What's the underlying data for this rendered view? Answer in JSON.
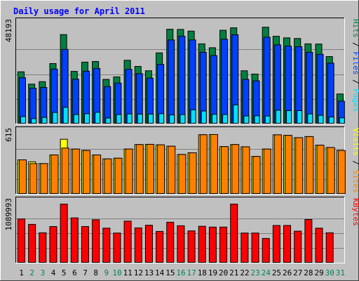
{
  "title": "Daily usage for April 2011",
  "colors": {
    "background": "#c0c0c0",
    "panel": "#c0c0c0",
    "title_text": "#0000ff",
    "hits": "#008040",
    "files": "#0040ff",
    "pages": "#00e0ff",
    "visits": "#ffff00",
    "sites": "#ff8000",
    "kbytes": "#ff0000",
    "weekday_label": "#000000",
    "weekend_label": "#00805c"
  },
  "chart_data": [
    {
      "type": "bar",
      "name": "hits-files-pages",
      "ylabel_parts": [
        "Pages",
        "Files",
        "Hits"
      ],
      "ylabel_colors": [
        "pages",
        "files",
        "hits"
      ],
      "max_label": "48193",
      "ylim": [
        0,
        48193
      ],
      "categories": [
        "1",
        "2",
        "3",
        "4",
        "5",
        "6",
        "7",
        "8",
        "9",
        "10",
        "11",
        "12",
        "13",
        "14",
        "15",
        "16",
        "17",
        "18",
        "19",
        "20",
        "21",
        "22",
        "23",
        "24",
        "25",
        "26",
        "27",
        "28",
        "29",
        "30",
        "31"
      ],
      "series": [
        {
          "name": "Hits",
          "color_key": "hits",
          "values": [
            25400,
            19400,
            20600,
            29400,
            43500,
            25600,
            30100,
            30400,
            21700,
            22900,
            31000,
            28000,
            25900,
            34600,
            46100,
            46000,
            45200,
            39000,
            37100,
            45600,
            46800,
            25900,
            24300,
            47100,
            42700,
            41900,
            41600,
            39000,
            38900,
            32800,
            14600
          ]
        },
        {
          "name": "Files",
          "color_key": "files",
          "values": [
            22500,
            17400,
            17800,
            26700,
            36300,
            21800,
            25700,
            27000,
            18200,
            19900,
            26600,
            24500,
            22300,
            29000,
            40900,
            42700,
            40900,
            34900,
            33300,
            41200,
            43400,
            21700,
            21000,
            42200,
            38500,
            37900,
            37600,
            34900,
            33900,
            29600,
            11100
          ]
        },
        {
          "name": "Pages",
          "color_key": "pages",
          "values": [
            3600,
            2600,
            3200,
            5600,
            8100,
            4600,
            5000,
            5700,
            2900,
            4600,
            4900,
            4800,
            4800,
            5000,
            4400,
            4600,
            6900,
            6300,
            4700,
            4600,
            9300,
            3900,
            4000,
            3900,
            6700,
            6500,
            6500,
            4900,
            4200,
            3400,
            3000
          ]
        }
      ]
    },
    {
      "type": "bar",
      "name": "visits-sites",
      "ylabel_parts": [
        "Sites",
        "Visits"
      ],
      "ylabel_colors": [
        "sites",
        "visits"
      ],
      "max_label": "615",
      "ylim": [
        0,
        615
      ],
      "categories": [
        "1",
        "2",
        "3",
        "4",
        "5",
        "6",
        "7",
        "8",
        "9",
        "10",
        "11",
        "12",
        "13",
        "14",
        "15",
        "16",
        "17",
        "18",
        "19",
        "20",
        "21",
        "22",
        "23",
        "24",
        "25",
        "26",
        "27",
        "28",
        "29",
        "30",
        "31"
      ],
      "series": [
        {
          "name": "Visits",
          "color_key": "visits",
          "values": [
            350,
            330,
            312,
            400,
            560,
            460,
            445,
            400,
            360,
            367,
            460,
            506,
            508,
            503,
            489,
            405,
            422,
            606,
            608,
            485,
            506,
            483,
            385,
            460,
            605,
            599,
            576,
            587,
            499,
            476,
            445
          ]
        },
        {
          "name": "Sites",
          "color_key": "sites",
          "values": [
            350,
            312,
            312,
            400,
            470,
            460,
            445,
            400,
            360,
            367,
            460,
            506,
            508,
            503,
            489,
            405,
            422,
            606,
            608,
            485,
            506,
            483,
            385,
            460,
            605,
            599,
            576,
            587,
            499,
            476,
            445
          ]
        }
      ]
    },
    {
      "type": "bar",
      "name": "kbytes",
      "ylabel_parts": [
        "KBytes"
      ],
      "ylabel_colors": [
        "kbytes"
      ],
      "max_label": "1089993",
      "ylim": [
        0,
        1089993
      ],
      "categories": [
        "1",
        "2",
        "3",
        "4",
        "5",
        "6",
        "7",
        "8",
        "9",
        "10",
        "11",
        "12",
        "13",
        "14",
        "15",
        "16",
        "17",
        "18",
        "19",
        "20",
        "21",
        "22",
        "23",
        "24",
        "25",
        "26",
        "27",
        "28",
        "29",
        "30",
        "31"
      ],
      "series": [
        {
          "name": "KBytes",
          "color_key": "kbytes",
          "values": [
            815000,
            715000,
            560000,
            675000,
            1089993,
            835000,
            675000,
            800000,
            645000,
            555000,
            775000,
            650000,
            700000,
            585000,
            755000,
            690000,
            595000,
            680000,
            665000,
            665000,
            1089993,
            555000,
            555000,
            455000,
            695000,
            695000,
            590000,
            805000,
            645000,
            560000,
            0
          ]
        }
      ]
    }
  ],
  "days": [
    {
      "label": "1",
      "weekend": false
    },
    {
      "label": "2",
      "weekend": true
    },
    {
      "label": "3",
      "weekend": true
    },
    {
      "label": "4",
      "weekend": false
    },
    {
      "label": "5",
      "weekend": false
    },
    {
      "label": "6",
      "weekend": false
    },
    {
      "label": "7",
      "weekend": false
    },
    {
      "label": "8",
      "weekend": false
    },
    {
      "label": "9",
      "weekend": true
    },
    {
      "label": "10",
      "weekend": true
    },
    {
      "label": "11",
      "weekend": false
    },
    {
      "label": "12",
      "weekend": false
    },
    {
      "label": "13",
      "weekend": false
    },
    {
      "label": "14",
      "weekend": false
    },
    {
      "label": "15",
      "weekend": false
    },
    {
      "label": "16",
      "weekend": true
    },
    {
      "label": "17",
      "weekend": true
    },
    {
      "label": "18",
      "weekend": false
    },
    {
      "label": "19",
      "weekend": false
    },
    {
      "label": "20",
      "weekend": false
    },
    {
      "label": "21",
      "weekend": false
    },
    {
      "label": "22",
      "weekend": false
    },
    {
      "label": "23",
      "weekend": true
    },
    {
      "label": "24",
      "weekend": true
    },
    {
      "label": "25",
      "weekend": false
    },
    {
      "label": "26",
      "weekend": false
    },
    {
      "label": "27",
      "weekend": false
    },
    {
      "label": "28",
      "weekend": false
    },
    {
      "label": "29",
      "weekend": false
    },
    {
      "label": "30",
      "weekend": true
    },
    {
      "label": "31",
      "weekend": true
    }
  ]
}
